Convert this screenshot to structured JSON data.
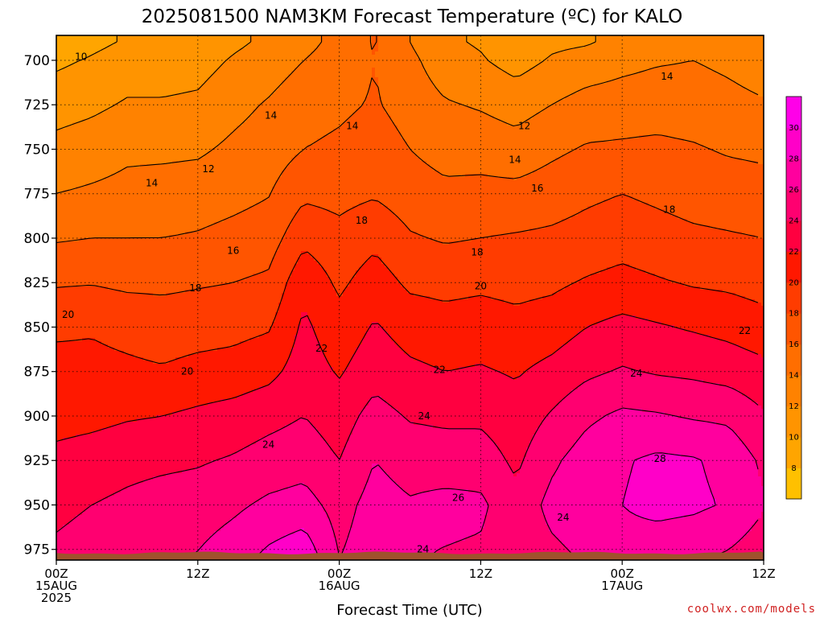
{
  "chart_data": {
    "type": "heatmap",
    "title": "2025081500 NAM3KM Forecast Temperature (ºC) for KALO",
    "xlabel": "Forecast Time (UTC)",
    "ylabel": "",
    "x_ticks": [
      {
        "hour": 0,
        "lines": [
          "00Z",
          "15AUG",
          "2025"
        ]
      },
      {
        "hour": 12,
        "lines": [
          "12Z"
        ]
      },
      {
        "hour": 24,
        "lines": [
          "00Z",
          "16AUG"
        ]
      },
      {
        "hour": 36,
        "lines": [
          "12Z"
        ]
      },
      {
        "hour": 48,
        "lines": [
          "00Z",
          "17AUG"
        ]
      },
      {
        "hour": 60,
        "lines": [
          "12Z"
        ]
      }
    ],
    "xlim": [
      0,
      60
    ],
    "y_ticks": [
      700,
      725,
      750,
      775,
      800,
      825,
      850,
      875,
      900,
      925,
      950,
      975
    ],
    "ylim": [
      686,
      981
    ],
    "y_unit": "hPa",
    "ground_level_hPa": 977,
    "grid": true,
    "colorbar": {
      "levels": [
        6,
        8,
        10,
        12,
        14,
        16,
        18,
        20,
        22,
        24,
        26,
        28,
        30,
        32
      ],
      "labels": [
        8,
        10,
        12,
        14,
        16,
        18,
        20,
        22,
        24,
        26,
        28,
        30
      ],
      "colors": [
        "#ffc000",
        "#ffa500",
        "#ff9400",
        "#ff8200",
        "#ff6e00",
        "#ff5500",
        "#ff3c00",
        "#ff1800",
        "#ff0040",
        "#ff0070",
        "#ff009e",
        "#ff00c8",
        "#ff00e8"
      ],
      "placement": "right"
    },
    "hours": [
      0,
      3,
      6,
      9,
      12,
      15,
      18,
      21,
      24,
      27,
      30,
      33,
      36,
      39,
      42,
      45,
      48,
      51,
      54,
      57,
      60
    ],
    "temp_rows": [
      {
        "p": 690,
        "t": [
          8.8,
          9.5,
          10.2,
          10.3,
          10.6,
          11.6,
          12.4,
          13.5,
          14.5,
          16.2,
          14.0,
          12.3,
          11.8,
          10.6,
          11.6,
          11.8,
          12.6,
          13.2,
          13.4,
          12.8,
          12.0
        ]
      },
      {
        "p": 700,
        "t": [
          9.6,
          10.2,
          11.0,
          11.0,
          11.2,
          12.2,
          13.0,
          14.0,
          14.8,
          16.0,
          14.5,
          12.8,
          12.2,
          11.2,
          12.2,
          12.8,
          13.4,
          13.8,
          14.0,
          13.6,
          13.0
        ]
      },
      {
        "p": 725,
        "t": [
          11.2,
          11.6,
          12.2,
          12.2,
          12.4,
          13.4,
          14.2,
          15.2,
          15.6,
          16.2,
          15.2,
          14.2,
          13.8,
          13.2,
          14.0,
          14.8,
          15.0,
          15.2,
          15.0,
          14.6,
          14.2
        ]
      },
      {
        "p": 750,
        "t": [
          12.6,
          13.0,
          13.6,
          13.6,
          13.7,
          14.4,
          15.0,
          16.0,
          16.4,
          17.0,
          16.0,
          15.2,
          15.2,
          14.8,
          15.6,
          16.2,
          16.3,
          16.4,
          16.2,
          15.8,
          15.6
        ]
      },
      {
        "p": 775,
        "t": [
          14.0,
          14.3,
          14.6,
          14.8,
          15.0,
          15.4,
          15.9,
          17.6,
          17.4,
          17.8,
          17.0,
          16.5,
          16.6,
          16.6,
          17.0,
          17.6,
          18.0,
          17.6,
          17.2,
          17.0,
          16.8
        ]
      },
      {
        "p": 800,
        "t": [
          15.8,
          16.0,
          16.0,
          16.0,
          16.2,
          16.6,
          17.0,
          19.5,
          18.6,
          19.5,
          18.2,
          17.8,
          18.0,
          18.2,
          18.4,
          18.8,
          19.2,
          18.8,
          18.4,
          18.2,
          18.0
        ]
      },
      {
        "p": 825,
        "t": [
          17.8,
          17.9,
          17.6,
          17.6,
          17.8,
          18.0,
          18.4,
          21.5,
          19.6,
          21.0,
          19.6,
          19.4,
          19.6,
          19.4,
          19.6,
          20.2,
          20.6,
          20.2,
          19.8,
          19.6,
          19.2
        ]
      },
      {
        "p": 850,
        "t": [
          19.6,
          19.8,
          19.4,
          19.0,
          19.2,
          19.4,
          19.8,
          22.4,
          20.8,
          22.2,
          21.2,
          20.8,
          21.0,
          20.6,
          21.0,
          22.0,
          22.6,
          22.2,
          21.8,
          21.4,
          20.8
        ]
      },
      {
        "p": 875,
        "t": [
          20.8,
          20.6,
          20.4,
          20.2,
          20.6,
          20.8,
          21.4,
          23.0,
          21.8,
          23.2,
          22.4,
          22.0,
          22.2,
          21.8,
          22.6,
          23.6,
          24.2,
          23.8,
          23.6,
          23.2,
          22.6
        ]
      },
      {
        "p": 900,
        "t": [
          21.2,
          21.4,
          21.8,
          22.0,
          22.4,
          22.8,
          23.4,
          24.0,
          23.0,
          24.8,
          23.8,
          23.6,
          23.6,
          22.8,
          24.2,
          25.6,
          26.4,
          26.2,
          25.8,
          25.6,
          24.2
        ]
      },
      {
        "p": 925,
        "t": [
          22.6,
          23.0,
          23.4,
          23.6,
          23.8,
          24.2,
          24.8,
          25.2,
          24.0,
          26.0,
          25.2,
          25.0,
          25.0,
          23.6,
          25.6,
          27.0,
          27.8,
          28.4,
          28.2,
          27.4,
          25.6
        ]
      },
      {
        "p": 950,
        "t": [
          23.6,
          24.0,
          24.4,
          24.8,
          25.0,
          25.6,
          26.4,
          26.8,
          25.2,
          26.8,
          26.2,
          26.6,
          26.4,
          24.6,
          26.6,
          27.4,
          28.0,
          28.6,
          28.4,
          27.8,
          26.2
        ]
      },
      {
        "p": 981,
        "t": [
          24.4,
          24.8,
          25.2,
          25.6,
          26.2,
          27.2,
          28.6,
          29.6,
          26.0,
          27.2,
          26.2,
          25.8,
          25.6,
          24.6,
          25.4,
          26.2,
          27.2,
          26.6,
          26.2,
          25.6,
          24.6
        ]
      }
    ],
    "contour_labels": [
      {
        "text": "10",
        "hour": 2.1,
        "p": 698
      },
      {
        "text": "14",
        "hour": 18.2,
        "p": 731
      },
      {
        "text": "14",
        "hour": 25.1,
        "p": 737
      },
      {
        "text": "12",
        "hour": 39.7,
        "p": 737
      },
      {
        "text": "14",
        "hour": 51.8,
        "p": 709
      },
      {
        "text": "12",
        "hour": 12.9,
        "p": 761
      },
      {
        "text": "14",
        "hour": 8.1,
        "p": 769
      },
      {
        "text": "14",
        "hour": 38.9,
        "p": 756
      },
      {
        "text": "16",
        "hour": 40.8,
        "p": 772
      },
      {
        "text": "18",
        "hour": 52.0,
        "p": 784
      },
      {
        "text": "18",
        "hour": 25.9,
        "p": 790
      },
      {
        "text": "16",
        "hour": 15.0,
        "p": 807
      },
      {
        "text": "18",
        "hour": 35.7,
        "p": 808
      },
      {
        "text": "18",
        "hour": 11.8,
        "p": 828
      },
      {
        "text": "20",
        "hour": 36.0,
        "p": 827
      },
      {
        "text": "20",
        "hour": 1.0,
        "p": 843
      },
      {
        "text": "22",
        "hour": 58.4,
        "p": 852
      },
      {
        "text": "22",
        "hour": 22.5,
        "p": 862
      },
      {
        "text": "20",
        "hour": 11.1,
        "p": 875
      },
      {
        "text": "22",
        "hour": 32.5,
        "p": 874
      },
      {
        "text": "24",
        "hour": 49.2,
        "p": 876
      },
      {
        "text": "24",
        "hour": 31.2,
        "p": 900
      },
      {
        "text": "24",
        "hour": 18.0,
        "p": 916
      },
      {
        "text": "28",
        "hour": 51.2,
        "p": 924
      },
      {
        "text": "26",
        "hour": 34.1,
        "p": 946
      },
      {
        "text": "24",
        "hour": 43.0,
        "p": 957
      },
      {
        "text": "24",
        "hour": 31.1,
        "p": 975
      }
    ]
  },
  "footer": {
    "credit": "coolwx.com/models"
  },
  "colors": {
    "ground": "#a0522d",
    "contour": "#000000",
    "grid": "#000000"
  }
}
